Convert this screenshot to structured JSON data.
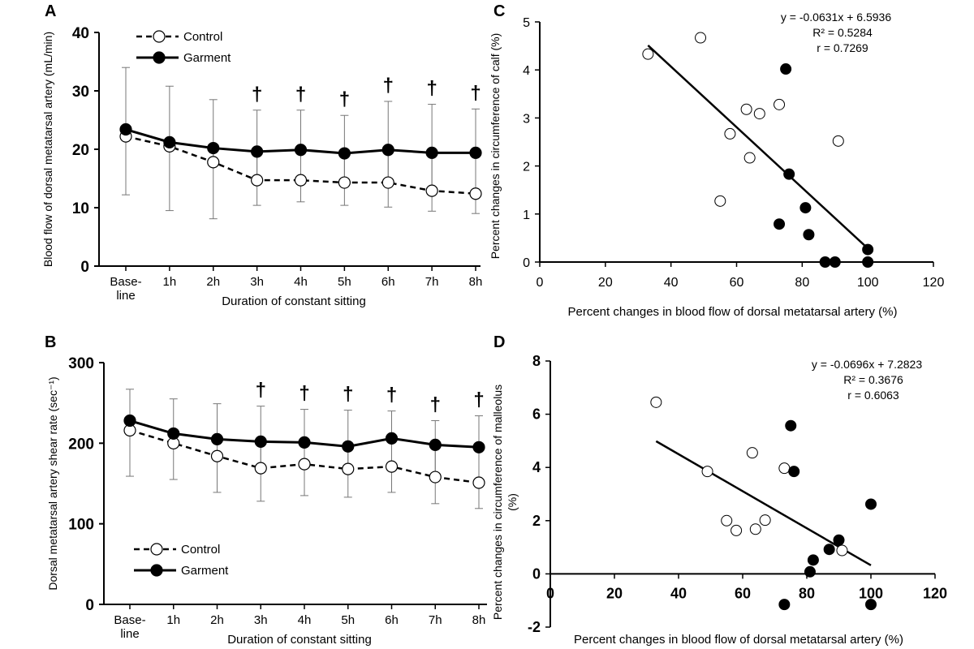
{
  "chart_data": [
    {
      "id": "A",
      "panel_letter": "A",
      "type": "line",
      "categories": [
        [
          "Base-",
          "line"
        ],
        [
          "1h"
        ],
        [
          "2h"
        ],
        [
          "3h"
        ],
        [
          "4h"
        ],
        [
          "5h"
        ],
        [
          "6h"
        ],
        [
          "7h"
        ],
        [
          "8h"
        ]
      ],
      "xlabel": "Duration of constant sitting",
      "ylabel": "Blood flow of dorsal metatarsal artery (mL/min)",
      "ylim": [
        0,
        40
      ],
      "yticks": [
        "0",
        "10",
        "20",
        "30",
        "40"
      ],
      "legend_position": "top-left",
      "grid": false,
      "series": [
        {
          "name": "Control",
          "style": "dashed",
          "marker": "open-circle",
          "values": [
            22.2,
            20.5,
            17.8,
            14.7,
            14.7,
            14.3,
            14.3,
            12.9,
            12.4
          ],
          "sd_upper": [
            34.0,
            30.8,
            28.5,
            26.7,
            26.7,
            25.8,
            28.2,
            27.7,
            26.9
          ]
        },
        {
          "name": "Garment",
          "style": "solid",
          "marker": "filled-circle",
          "values": [
            23.4,
            21.2,
            20.2,
            19.6,
            19.9,
            19.3,
            19.9,
            19.4,
            19.4
          ],
          "sd_lower": [
            12.2,
            9.5,
            8.1,
            10.4,
            11.0,
            10.4,
            10.1,
            9.4,
            9.0
          ]
        }
      ],
      "dagger_symbol": "†",
      "dagger_categories": [
        3,
        4,
        5,
        6,
        7,
        8
      ]
    },
    {
      "id": "B",
      "panel_letter": "B",
      "type": "line",
      "categories": [
        [
          "Base-",
          "line"
        ],
        [
          "1h"
        ],
        [
          "2h"
        ],
        [
          "3h"
        ],
        [
          "4h"
        ],
        [
          "5h"
        ],
        [
          "6h"
        ],
        [
          "7h"
        ],
        [
          "8h"
        ]
      ],
      "xlabel": "Duration of constant sitting",
      "ylabel": "Dorsal metatarsal artery shear rate (sec⁻¹)",
      "ylim": [
        0,
        300
      ],
      "yticks": [
        "0",
        "100",
        "200",
        "300"
      ],
      "legend_position": "bottom-left",
      "grid": false,
      "series": [
        {
          "name": "Control",
          "style": "dashed",
          "marker": "open-circle",
          "values": [
            216,
            200,
            184,
            169,
            174,
            168,
            171,
            158,
            151
          ],
          "sd_upper": [
            267,
            255,
            249,
            246,
            242,
            241,
            240,
            228,
            234
          ]
        },
        {
          "name": "Garment",
          "style": "solid",
          "marker": "filled-circle",
          "values": [
            228,
            212,
            205,
            202,
            201,
            196,
            206,
            198,
            195
          ],
          "sd_lower": [
            159,
            155,
            139,
            128,
            135,
            133,
            139,
            125,
            119
          ]
        }
      ],
      "dagger_symbol": "†",
      "dagger_categories": [
        3,
        4,
        5,
        6,
        7,
        8
      ]
    },
    {
      "id": "C",
      "panel_letter": "C",
      "type": "scatter",
      "xlabel": "Percent changes in blood flow of dorsal metatarsal artery (%)",
      "ylabel": "Percent changes in circumference of calf (%)",
      "xlim": [
        0,
        120
      ],
      "ylim": [
        0,
        5
      ],
      "xticks": [
        "0",
        "20",
        "40",
        "60",
        "80",
        "100",
        "120"
      ],
      "yticks": [
        "0",
        "1",
        "2",
        "3",
        "4",
        "5"
      ],
      "grid": false,
      "equation": "y = -0.0631x + 6.5936",
      "r_squared": "R² = 0.5284",
      "r_value": "r = 0.7269",
      "trendline": {
        "slope": -0.0631,
        "intercept": 6.5936,
        "x_range": [
          33,
          100
        ]
      },
      "open_points": [
        [
          33,
          4.33
        ],
        [
          49,
          4.67
        ],
        [
          55,
          1.27
        ],
        [
          58,
          2.67
        ],
        [
          63,
          3.18
        ],
        [
          64,
          2.17
        ],
        [
          67,
          3.09
        ],
        [
          73,
          3.28
        ],
        [
          91,
          2.52
        ]
      ],
      "filled_points": [
        [
          75,
          4.02
        ],
        [
          76,
          1.83
        ],
        [
          73,
          0.79
        ],
        [
          81,
          1.13
        ],
        [
          82,
          0.57
        ],
        [
          87,
          0.0
        ],
        [
          90,
          0.0
        ],
        [
          100,
          0.26
        ],
        [
          100,
          0.0
        ]
      ]
    },
    {
      "id": "D",
      "panel_letter": "D",
      "type": "scatter",
      "xlabel": "Percent changes in blood flow of dorsal metatarsal artery (%)",
      "ylabel": "Percent changes in circumference of malleolus (%)",
      "xlim": [
        0,
        120
      ],
      "ylim": [
        -2,
        8
      ],
      "xticks": [
        "0",
        "20",
        "40",
        "60",
        "80",
        "100",
        "120"
      ],
      "yticks": [
        "-2",
        "0",
        "2",
        "4",
        "6",
        "8"
      ],
      "grid": false,
      "equation": "y = -0.0696x + 7.2823",
      "r_squared": "R² = 0.3676",
      "r_value": "r = 0.6063",
      "trendline": {
        "slope": -0.0696,
        "intercept": 7.2823,
        "x_range": [
          33,
          100
        ]
      },
      "open_points": [
        [
          33,
          6.45
        ],
        [
          49,
          3.85
        ],
        [
          55,
          2.0
        ],
        [
          58,
          1.63
        ],
        [
          63,
          4.55
        ],
        [
          64,
          1.68
        ],
        [
          67,
          2.02
        ],
        [
          73,
          3.97
        ],
        [
          91,
          0.88
        ]
      ],
      "filled_points": [
        [
          75,
          5.57
        ],
        [
          76,
          3.85
        ],
        [
          73,
          -1.15
        ],
        [
          81,
          0.08
        ],
        [
          82,
          0.52
        ],
        [
          87,
          0.92
        ],
        [
          90,
          1.27
        ],
        [
          100,
          2.62
        ],
        [
          100,
          -1.15
        ]
      ]
    }
  ]
}
